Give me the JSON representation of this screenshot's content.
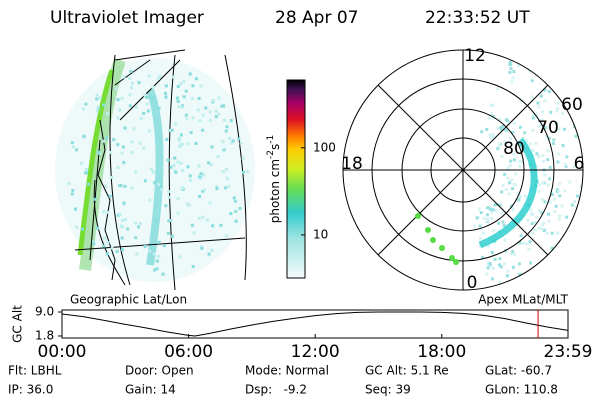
{
  "header": {
    "title": "Ultraviolet Imager",
    "date": "28 Apr 07",
    "time": "22:33:52 UT"
  },
  "colorbar": {
    "label": "photon cm",
    "sup1": "-2",
    "unit2": "s",
    "sup2": "-1",
    "lim": [
      3.2,
      600
    ],
    "ticks": [
      10,
      100
    ],
    "log": true
  },
  "left_map": {
    "label": "Geographic Lat/Lon"
  },
  "polar": {
    "label": "Apex MLat/MLT",
    "mlt_labels": [
      "12",
      "18",
      "6",
      "0"
    ],
    "lat_labels": [
      "60",
      "70",
      "80"
    ]
  },
  "altitude_plot": {
    "ylabel": "GC Alt",
    "yticks": [
      {
        "value": 9,
        "label": "9.0"
      },
      {
        "value": 1.8,
        "label": "1.8"
      }
    ],
    "ylim": [
      1.2,
      9.6
    ],
    "xlim": [
      0,
      23.983
    ],
    "xticks": [
      {
        "value": 0,
        "label": "00:00"
      },
      {
        "value": 6,
        "label": "06:00"
      },
      {
        "value": 12,
        "label": "12:00"
      },
      {
        "value": 18,
        "label": "18:00"
      },
      {
        "value": 23.983,
        "label": "23:59"
      }
    ],
    "x": [
      0,
      1,
      2,
      3,
      4,
      5,
      6,
      6.3,
      7,
      8,
      9,
      10,
      11,
      12,
      13,
      14,
      15,
      16,
      17,
      18,
      19,
      20,
      21,
      22,
      23,
      23.983
    ],
    "values": [
      8.4,
      7.6,
      6.5,
      5.3,
      4.2,
      3.0,
      2.0,
      1.8,
      2.6,
      3.9,
      5.1,
      6.2,
      7.1,
      7.9,
      8.5,
      8.9,
      9.0,
      9.0,
      9.0,
      8.9,
      8.6,
      8.0,
      7.0,
      5.7,
      4.5,
      3.5
    ],
    "marker_x": 22.564
  },
  "footer": {
    "rows": [
      [
        "Flt: LBHL",
        "Door: Open",
        "Mode: Normal",
        "GC Alt: 5.1 Re",
        "GLat: -60.7"
      ],
      [
        "IP: 36.0",
        "Gain: 14",
        "Dsp:   -9.2",
        "Seq: 39",
        "GLon: 110.8"
      ]
    ]
  }
}
